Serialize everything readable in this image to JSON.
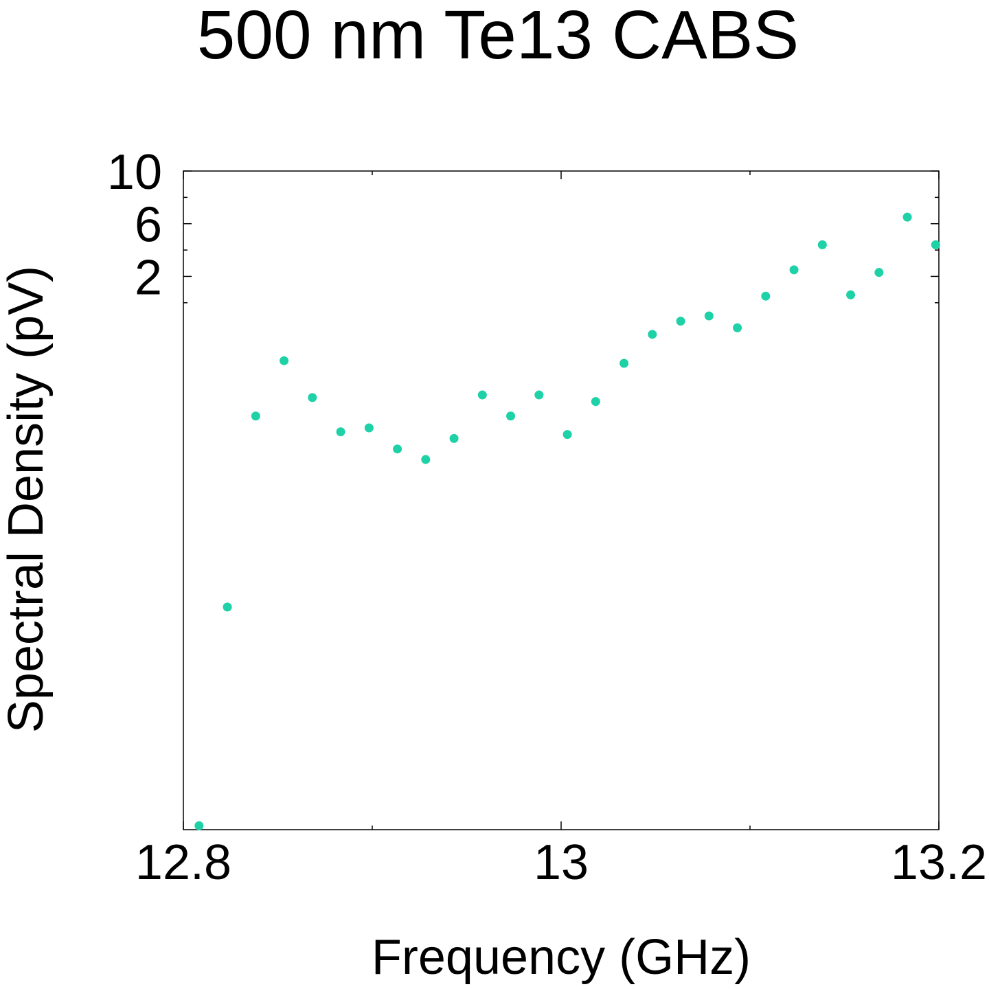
{
  "chart_data": {
    "type": "scatter",
    "title": "500 nm Te13 CABS",
    "xlabel": "Frequency (GHz)",
    "ylabel": "Spectral Density (pV)",
    "xlim": [
      12.8,
      13.2
    ],
    "ylim": [
      -40,
      10
    ],
    "xticks": [
      12.8,
      13.0,
      13.2
    ],
    "xtick_labels": [
      "12.8",
      "13",
      "13.2"
    ],
    "yticks": [
      10,
      6,
      2
    ],
    "ytick_labels": [
      "10",
      "6",
      "2"
    ],
    "grid": false,
    "legend": "none",
    "marker_color": "#1fd1a6",
    "x": [
      12.8083,
      12.8233,
      12.8383,
      12.8533,
      12.8683,
      12.8833,
      12.8983,
      12.9133,
      12.9283,
      12.9433,
      12.9583,
      12.9733,
      12.9883,
      13.0033,
      13.0183,
      13.0333,
      13.0483,
      13.0633,
      13.0783,
      13.0933,
      13.1083,
      13.1233,
      13.1383,
      13.1533,
      13.1683,
      13.1833,
      13.1983
    ],
    "y": [
      -39.7,
      -23.1,
      -8.6,
      -4.4,
      -7.2,
      -9.8,
      -9.5,
      -11.1,
      -11.9,
      -10.3,
      -7.0,
      -8.6,
      -7.0,
      -10.0,
      -7.5,
      -4.6,
      -2.4,
      -1.4,
      -1.0,
      -1.9,
      0.5,
      2.5,
      4.4,
      0.6,
      2.3,
      6.5,
      4.4
    ]
  }
}
